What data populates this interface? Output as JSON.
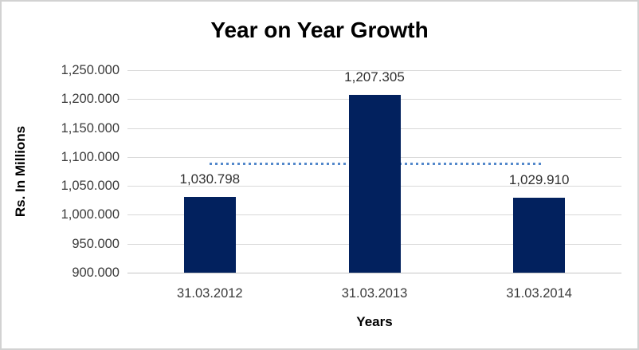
{
  "chart_data": {
    "type": "bar",
    "title": "Year on Year Growth",
    "xlabel": "Years",
    "ylabel": "Rs. In Millions",
    "categories": [
      "31.03.2012",
      "31.03.2013",
      "31.03.2014"
    ],
    "values": [
      1030.798,
      1207.305,
      1029.91
    ],
    "data_labels": [
      "1,030.798",
      "1,207.305",
      "1,029.910"
    ],
    "ylim": [
      900,
      1250
    ],
    "y_ticks": [
      {
        "value": 900,
        "label": "900.000"
      },
      {
        "value": 950,
        "label": "950.000"
      },
      {
        "value": 1000,
        "label": "1,000.000"
      },
      {
        "value": 1050,
        "label": "1,050.000"
      },
      {
        "value": 1100,
        "label": "1,100.000"
      },
      {
        "value": 1150,
        "label": "1,150.000"
      },
      {
        "value": 1200,
        "label": "1,200.000"
      },
      {
        "value": 1250,
        "label": "1,250.000"
      }
    ],
    "grid": true,
    "legend": "none",
    "trendline": {
      "style": "square-dotted",
      "value": 1089.338,
      "from_category": 0,
      "to_category": 2
    },
    "colors": {
      "bar": "#02215E",
      "trendline": "#5388CB",
      "gridline": "#D9D9D9",
      "axis_line": "#C6C6C6",
      "tick_text": "#3B3B3B",
      "title_text": "#000000",
      "background": "#FFFFFF",
      "border": "#D2D2D2"
    }
  }
}
